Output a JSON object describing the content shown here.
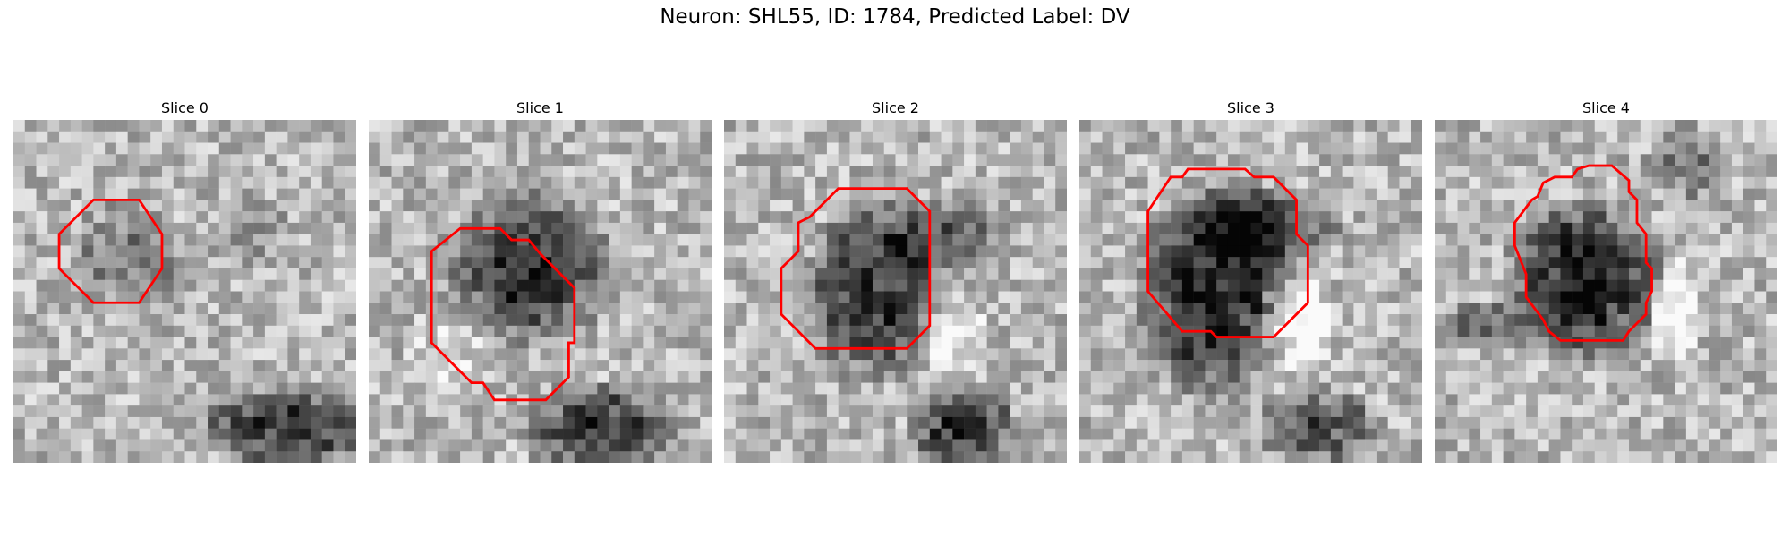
{
  "figure": {
    "title": "Neuron: SHL55, ID: 1784, Predicted Label: DV",
    "outline_color": "#ff0000"
  },
  "panels": [
    {
      "title": "Slice 0"
    },
    {
      "title": "Slice 1"
    },
    {
      "title": "Slice 2"
    },
    {
      "title": "Slice 3"
    },
    {
      "title": "Slice 4"
    }
  ]
}
